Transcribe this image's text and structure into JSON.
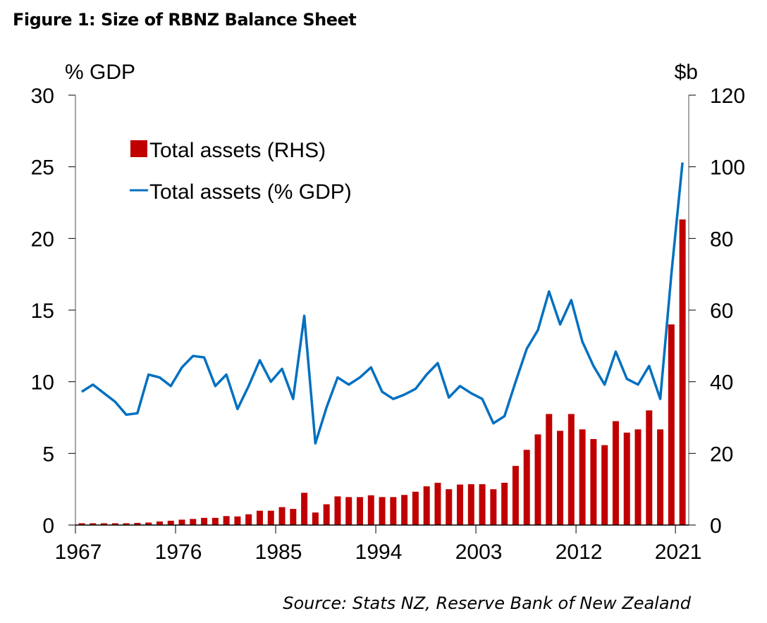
{
  "chart_data": {
    "type": "bar+line",
    "title": "Figure 1: Size of RBNZ Balance Sheet",
    "source": "Source: Stats NZ, Reserve Bank of New Zealand",
    "ylabel_left": "% GDP",
    "ylabel_right": "$b",
    "ylim_left": [
      0,
      30
    ],
    "ylim_right": [
      0,
      120
    ],
    "yticks_left": [
      0,
      5,
      10,
      15,
      20,
      25,
      30
    ],
    "yticks_right": [
      0,
      20,
      40,
      60,
      80,
      100,
      120
    ],
    "xtick_labels": [
      "1967",
      "1976",
      "1985",
      "1994",
      "2003",
      "2012",
      "2021"
    ],
    "grid": false,
    "legend_position": "top-left",
    "years": [
      1967,
      1968,
      1969,
      1970,
      1971,
      1972,
      1973,
      1974,
      1975,
      1976,
      1977,
      1978,
      1979,
      1980,
      1981,
      1982,
      1983,
      1984,
      1985,
      1986,
      1987,
      1988,
      1989,
      1990,
      1991,
      1992,
      1993,
      1994,
      1995,
      1996,
      1997,
      1998,
      1999,
      2000,
      2001,
      2002,
      2003,
      2004,
      2005,
      2006,
      2007,
      2008,
      2009,
      2010,
      2011,
      2012,
      2013,
      2014,
      2015,
      2016,
      2017,
      2018,
      2019,
      2020,
      2021
    ],
    "series": [
      {
        "name": "Total assets (RHS)",
        "type": "bar",
        "axis": "right",
        "color": "#C00000",
        "values": [
          0.5,
          0.5,
          0.5,
          0.5,
          0.5,
          0.6,
          0.7,
          1.0,
          1.2,
          1.5,
          1.7,
          2.0,
          2.0,
          2.5,
          2.4,
          3.0,
          4.0,
          4.0,
          5.0,
          4.5,
          9.0,
          3.5,
          5.8,
          8.0,
          7.8,
          7.8,
          8.3,
          7.8,
          7.8,
          8.4,
          9.3,
          10.8,
          11.8,
          10.0,
          11.3,
          11.4,
          11.4,
          10.0,
          11.8,
          16.5,
          21.0,
          25.3,
          31.0,
          26.3,
          31.0,
          26.7,
          24.0,
          22.3,
          29.0,
          25.8,
          26.7,
          32.0,
          26.7,
          56.0,
          85.3
        ]
      },
      {
        "name": "Total assets (% GDP)",
        "type": "line",
        "axis": "left",
        "color": "#0070C0",
        "values": [
          9.3,
          9.8,
          9.2,
          8.6,
          7.7,
          7.8,
          10.5,
          10.3,
          9.7,
          11.0,
          11.8,
          11.7,
          9.7,
          10.5,
          8.1,
          9.7,
          11.5,
          10.0,
          10.9,
          8.8,
          14.6,
          5.7,
          8.2,
          10.3,
          9.8,
          10.3,
          11.0,
          9.3,
          8.8,
          9.1,
          9.5,
          10.5,
          11.3,
          8.9,
          9.7,
          9.2,
          8.8,
          7.1,
          7.6,
          10.0,
          12.3,
          13.6,
          16.3,
          14.0,
          15.7,
          12.8,
          11.1,
          9.8,
          12.1,
          10.2,
          9.8,
          11.1,
          8.8,
          17.5,
          25.3
        ]
      }
    ]
  }
}
